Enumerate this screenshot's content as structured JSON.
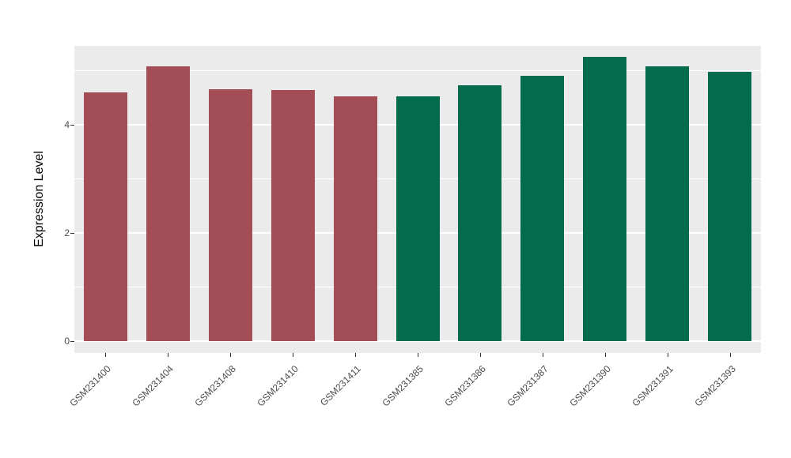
{
  "chart_data": {
    "type": "bar",
    "title": "",
    "xlabel": "",
    "ylabel": "Expression Level",
    "categories": [
      "GSM231400",
      "GSM231404",
      "GSM231408",
      "GSM231410",
      "GSM231411",
      "GSM231385",
      "GSM231386",
      "GSM231387",
      "GSM231390",
      "GSM231391",
      "GSM231393"
    ],
    "values": [
      4.6,
      5.08,
      4.65,
      4.64,
      4.52,
      4.52,
      4.73,
      4.9,
      5.25,
      5.08,
      4.98
    ],
    "bar_colors": [
      "#A34E56",
      "#A34E56",
      "#A34E56",
      "#A34E56",
      "#A34E56",
      "#046C4C",
      "#046C4C",
      "#046C4C",
      "#046C4C",
      "#046C4C",
      "#046C4C"
    ],
    "yticks_major": [
      0,
      2,
      4
    ],
    "yticks_minor": [
      1,
      3,
      5
    ],
    "ylim": [
      0,
      5.46
    ],
    "panel_background": "#EBEBEB",
    "gridline_color": "#FFFFFF",
    "legend": "none",
    "grid": "on"
  }
}
